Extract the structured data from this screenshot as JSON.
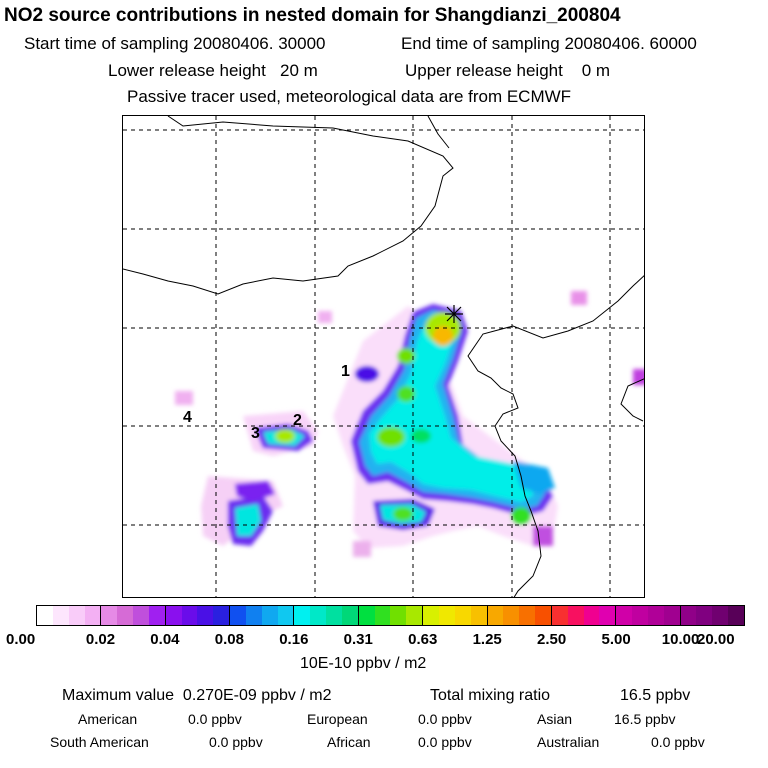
{
  "header": {
    "title": "NO2 source contributions in nested domain for Shangdianzi_200804",
    "start_time": "Start time of sampling 20080406. 30000",
    "end_time": "End time of sampling 20080406. 60000",
    "lower_release": "Lower release height   20 m",
    "upper_release": "Upper release height    0 m",
    "tracer_note": "Passive tracer used, meteorological data are from ECMWF"
  },
  "map": {
    "source_labels": [
      "1",
      "2",
      "3",
      "4"
    ],
    "receptor_marker": "receptor-star"
  },
  "colorbar": {
    "ticks": [
      "0.00",
      "0.02",
      "0.04",
      "0.08",
      "0.16",
      "0.31",
      "0.63",
      "1.25",
      "2.50",
      "5.00",
      "10.00",
      "20.00"
    ],
    "unit": "10E-10 ppbv / m2",
    "colors": [
      [
        "#ffffff",
        "#fde6fd",
        "#f9ccf9",
        "#f3b0f3"
      ],
      [
        "#e68ae6",
        "#d66bd6",
        "#c04fdc",
        "#a020f0"
      ],
      [
        "#8a10ee",
        "#6a0cea",
        "#4a10e6",
        "#2a20e0"
      ],
      [
        "#1050f0",
        "#1080f0",
        "#10a8f0",
        "#10c8f0"
      ],
      [
        "#00f0f0",
        "#00e8c8",
        "#00e0a0",
        "#00d878"
      ],
      [
        "#00e040",
        "#30e020",
        "#70e000",
        "#a8e800"
      ],
      [
        "#d8f000",
        "#f0e800",
        "#f8d800",
        "#f8c000"
      ],
      [
        "#f8a800",
        "#f89000",
        "#f87000",
        "#f85000"
      ],
      [
        "#f83030",
        "#f81060",
        "#f00090",
        "#e000b0"
      ],
      [
        "#d000a8",
        "#c000a0",
        "#b00098",
        "#a00090"
      ],
      [
        "#900088",
        "#800080",
        "#700070",
        "#580058"
      ]
    ]
  },
  "stats": {
    "max_value": "Maximum value  0.270E-09 ppbv / m2",
    "total_mixing": "Total mixing ratio",
    "total_value": "16.5 ppbv",
    "regions": [
      {
        "name": "American",
        "value": "0.0 ppbv"
      },
      {
        "name": "European",
        "value": "0.0 ppbv"
      },
      {
        "name": "Asian",
        "value": "16.5 ppbv"
      },
      {
        "name": "South American",
        "value": "0.0 ppbv"
      },
      {
        "name": "African",
        "value": "0.0 ppbv"
      },
      {
        "name": "Australian",
        "value": "0.0 ppbv"
      }
    ]
  }
}
